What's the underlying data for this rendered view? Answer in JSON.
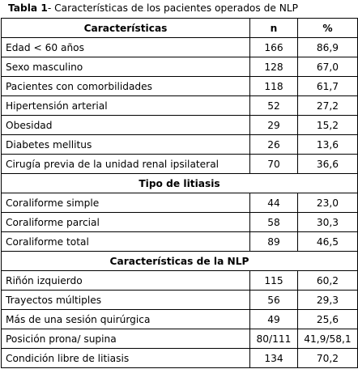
{
  "caption": {
    "label": "Tabla 1",
    "text": "- Características de los pacientes operados de NLP"
  },
  "header": {
    "col1": "Características",
    "col2": "n",
    "col3": "%"
  },
  "groups": [
    {
      "title": "",
      "rows": [
        {
          "label": "Edad < 60 años",
          "n": "166",
          "pct": "86,9"
        },
        {
          "label": "Sexo masculino",
          "n": "128",
          "pct": "67,0"
        },
        {
          "label": "Pacientes con comorbilidades",
          "n": "118",
          "pct": "61,7"
        },
        {
          "label": "Hipertensión arterial",
          "n": "52",
          "pct": "27,2"
        },
        {
          "label": "Obesidad",
          "n": "29",
          "pct": "15,2"
        },
        {
          "label": "Diabetes mellitus",
          "n": "26",
          "pct": "13,6"
        },
        {
          "label": "Cirugía previa de la unidad renal ipsilateral",
          "n": "70",
          "pct": "36,6"
        }
      ]
    },
    {
      "title": "Tipo de litiasis",
      "rows": [
        {
          "label": "Coraliforme simple",
          "n": "44",
          "pct": "23,0"
        },
        {
          "label": "Coraliforme parcial",
          "n": "58",
          "pct": "30,3"
        },
        {
          "label": "Coraliforme total",
          "n": "89",
          "pct": "46,5"
        }
      ]
    },
    {
      "title": "Características de la NLP",
      "rows": [
        {
          "label": "Riñón izquierdo",
          "n": "115",
          "pct": "60,2"
        },
        {
          "label": "Trayectos múltiples",
          "n": "56",
          "pct": "29,3"
        },
        {
          "label": "Más de una sesión quirúrgica",
          "n": "49",
          "pct": "25,6"
        },
        {
          "label": "Posición prona/ supina",
          "n": "80/111",
          "pct": "41,9/58,1"
        },
        {
          "label": "Condición libre de litiasis",
          "n": "134",
          "pct": "70,2"
        }
      ]
    }
  ]
}
